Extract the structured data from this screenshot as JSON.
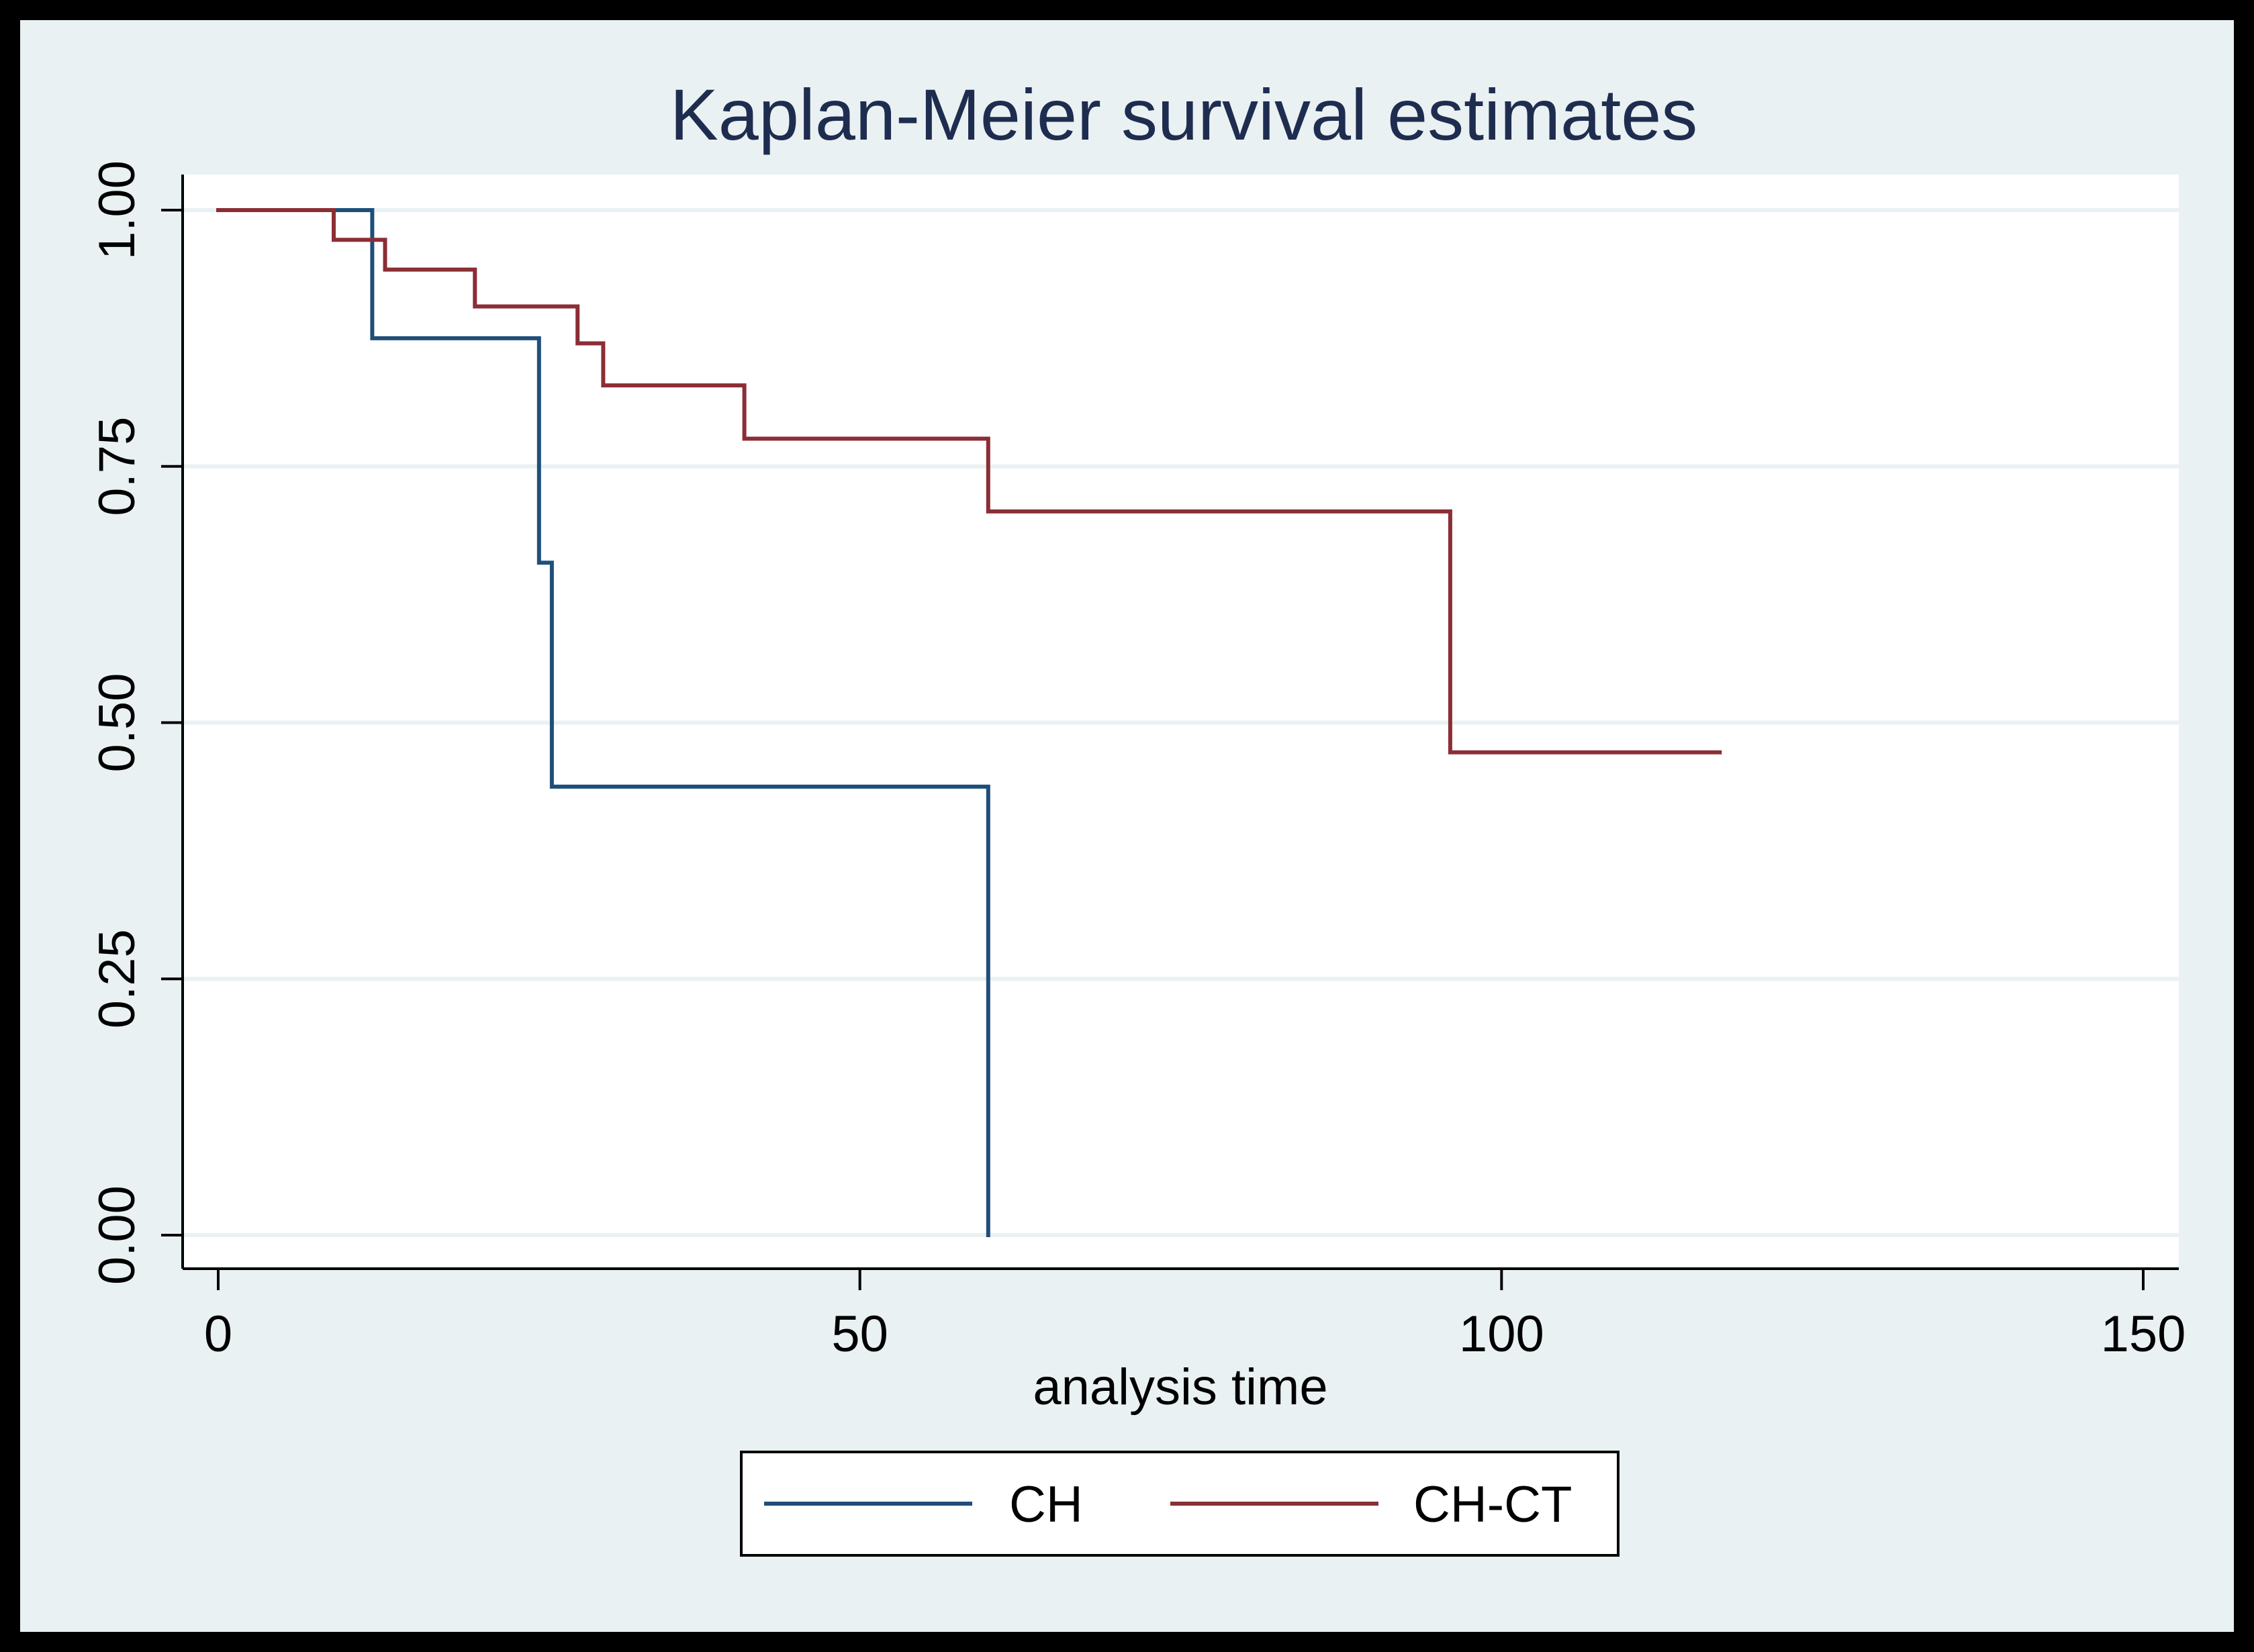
{
  "chart_data": {
    "type": "line",
    "step": true,
    "title": "Kaplan-Meier survival estimates",
    "xlabel": "analysis time",
    "ylabel": "",
    "xlim": [
      0,
      150
    ],
    "ylim": [
      0,
      1
    ],
    "x_ticks": [
      0,
      50,
      100,
      150
    ],
    "x_tick_labels": [
      "0",
      "50",
      "100",
      "150"
    ],
    "y_ticks": [
      0,
      0.25,
      0.5,
      0.75,
      1
    ],
    "y_tick_labels": [
      "0.00",
      "0.25",
      "0.50",
      "0.75",
      "1.00"
    ],
    "grid": true,
    "legend_position": "bottom",
    "series": [
      {
        "name": "CH",
        "color": "#1F4E79",
        "points": [
          [
            0,
            1.0
          ],
          [
            12,
            1.0
          ],
          [
            12,
            0.875
          ],
          [
            25,
            0.875
          ],
          [
            25,
            0.656
          ],
          [
            26,
            0.656
          ],
          [
            26,
            0.4375
          ],
          [
            60,
            0.4375
          ],
          [
            60,
            0.0
          ]
        ]
      },
      {
        "name": "CH-CT",
        "color": "#8B2E35",
        "points": [
          [
            0,
            1.0
          ],
          [
            9,
            1.0
          ],
          [
            9,
            0.971
          ],
          [
            13,
            0.971
          ],
          [
            13,
            0.942
          ],
          [
            20,
            0.942
          ],
          [
            20,
            0.906
          ],
          [
            28,
            0.906
          ],
          [
            28,
            0.87
          ],
          [
            30,
            0.87
          ],
          [
            30,
            0.829
          ],
          [
            41,
            0.829
          ],
          [
            41,
            0.777
          ],
          [
            60,
            0.777
          ],
          [
            60,
            0.706
          ],
          [
            96,
            0.706
          ],
          [
            96,
            0.471
          ],
          [
            117,
            0.471
          ]
        ]
      }
    ]
  },
  "colors": {
    "outer_background": "#EAF1F3",
    "plot_background": "#FFFFFF",
    "gridline": "#EAF1F3",
    "axis": "#000000",
    "title": "#1E2D4F",
    "text": "#000000"
  }
}
